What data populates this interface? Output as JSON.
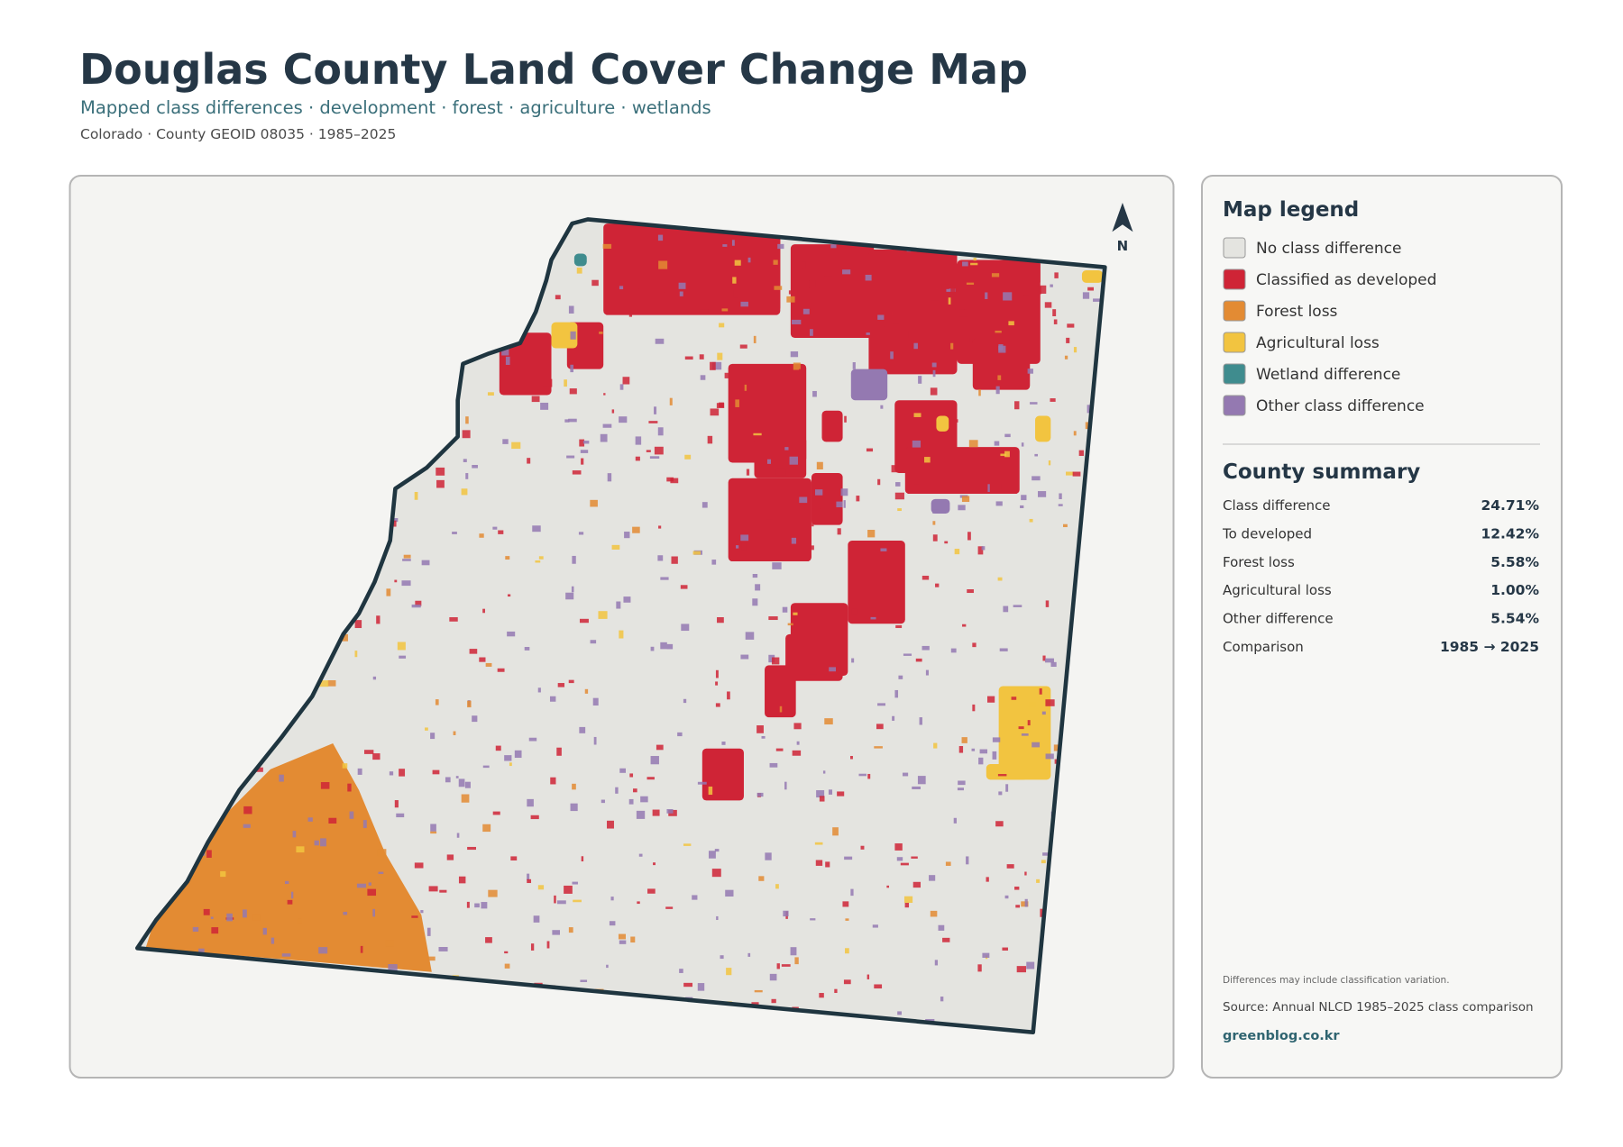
{
  "header": {
    "title": "Douglas County Land Cover Change Map",
    "subtitle": "Mapped class differences · development · forest · agriculture · wetlands",
    "meta": "Colorado · County GEOID 08035 · 1985–2025"
  },
  "map": {
    "north_label": "N"
  },
  "legend": {
    "title": "Map legend",
    "items": [
      {
        "label": "No class difference",
        "color": "#e4e4e0"
      },
      {
        "label": "Classified as developed",
        "color": "#cf2436"
      },
      {
        "label": "Forest loss",
        "color": "#e38b33"
      },
      {
        "label": "Agricultural loss",
        "color": "#f2c440"
      },
      {
        "label": "Wetland difference",
        "color": "#3f8c8e"
      },
      {
        "label": "Other class difference",
        "color": "#9479b1"
      }
    ]
  },
  "summary": {
    "title": "County summary",
    "rows": [
      {
        "label": "Class difference",
        "value": "24.71%"
      },
      {
        "label": "To developed",
        "value": "12.42%"
      },
      {
        "label": "Forest loss",
        "value": "5.58%"
      },
      {
        "label": "Agricultural loss",
        "value": "1.00%"
      },
      {
        "label": "Other difference",
        "value": "5.54%"
      },
      {
        "label": "Comparison",
        "value": "1985 → 2025"
      }
    ]
  },
  "footer": {
    "note": "Differences may include classification variation.",
    "source": "Source: Annual NLCD 1985–2025 class comparison",
    "site": "greenblog.co.kr"
  }
}
